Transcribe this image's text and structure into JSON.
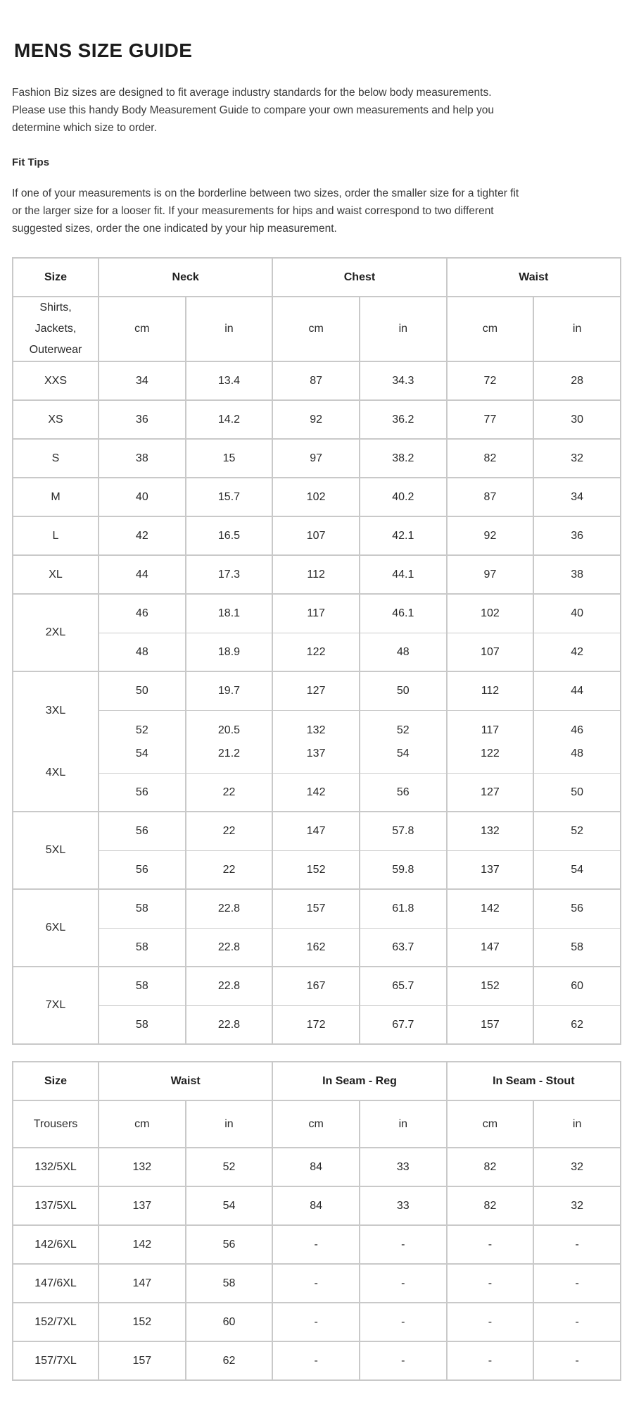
{
  "page": {
    "title": "MENS SIZE GUIDE",
    "intro": "Fashion Biz sizes are designed to fit average industry standards for the below body measurements.\nPlease use this handy Body Measurement Guide to compare your own measurements and help you\ndetermine which size to order.",
    "fit_tips_heading": "Fit Tips",
    "fit_tips_body": "If one of your measurements is on the borderline between two sizes, order the smaller size for a tighter fit\nor the larger size for a looser fit. If your measurements for hips and waist correspond to two different\nsuggested sizes, order the one indicated by your hip measurement."
  },
  "tables": [
    {
      "name": "shirts-jackets-outerwear",
      "columns": [
        "Size",
        "Neck",
        "Chest",
        "Waist"
      ],
      "category_label": "Shirts,\nJackets,\nOuterwear",
      "units": [
        "cm",
        "in",
        "cm",
        "in",
        "cm",
        "in"
      ],
      "groups": [
        {
          "labels": [
            "XXS"
          ],
          "rows": [
            [
              "34",
              "13.4",
              "87",
              "34.3",
              "72",
              "28"
            ]
          ]
        },
        {
          "labels": [
            "XS"
          ],
          "rows": [
            [
              "36",
              "14.2",
              "92",
              "36.2",
              "77",
              "30"
            ]
          ]
        },
        {
          "labels": [
            "S"
          ],
          "rows": [
            [
              "38",
              "15",
              "97",
              "38.2",
              "82",
              "32"
            ]
          ]
        },
        {
          "labels": [
            "M"
          ],
          "rows": [
            [
              "40",
              "15.7",
              "102",
              "40.2",
              "87",
              "34"
            ]
          ]
        },
        {
          "labels": [
            "L"
          ],
          "rows": [
            [
              "42",
              "16.5",
              "107",
              "42.1",
              "92",
              "36"
            ]
          ]
        },
        {
          "labels": [
            "XL"
          ],
          "rows": [
            [
              "44",
              "17.3",
              "112",
              "44.1",
              "97",
              "38"
            ]
          ]
        },
        {
          "labels": [
            "2XL"
          ],
          "rows": [
            [
              "46",
              "18.1",
              "117",
              "46.1",
              "102",
              "40"
            ],
            [
              "48",
              "18.9",
              "122",
              "48",
              "107",
              "42"
            ]
          ]
        },
        {
          "labels": [
            "3XL",
            "4XL"
          ],
          "rows": [
            [
              "50",
              "19.7",
              "127",
              "50",
              "112",
              "44"
            ],
            [
              "52\n54",
              "20.5\n21.2",
              "132\n137",
              "52\n54",
              "117\n122",
              "46\n48"
            ],
            [
              "56",
              "22",
              "142",
              "56",
              "127",
              "50"
            ]
          ]
        },
        {
          "labels": [
            "5XL"
          ],
          "rows": [
            [
              "56",
              "22",
              "147",
              "57.8",
              "132",
              "52"
            ],
            [
              "56",
              "22",
              "152",
              "59.8",
              "137",
              "54"
            ]
          ]
        },
        {
          "labels": [
            "6XL"
          ],
          "rows": [
            [
              "58",
              "22.8",
              "157",
              "61.8",
              "142",
              "56"
            ],
            [
              "58",
              "22.8",
              "162",
              "63.7",
              "147",
              "58"
            ]
          ]
        },
        {
          "labels": [
            "7XL"
          ],
          "rows": [
            [
              "58",
              "22.8",
              "167",
              "65.7",
              "152",
              "60"
            ],
            [
              "58",
              "22.8",
              "172",
              "67.7",
              "157",
              "62"
            ]
          ]
        }
      ]
    },
    {
      "name": "trousers",
      "columns": [
        "Size",
        "Waist",
        "In Seam - Reg",
        "In Seam - Stout"
      ],
      "category_label": "Trousers",
      "units": [
        "cm",
        "in",
        "cm",
        "in",
        "cm",
        "in"
      ],
      "groups": [
        {
          "labels": [
            "132/5XL"
          ],
          "rows": [
            [
              "132",
              "52",
              "84",
              "33",
              "82",
              "32"
            ]
          ]
        },
        {
          "labels": [
            "137/5XL"
          ],
          "rows": [
            [
              "137",
              "54",
              "84",
              "33",
              "82",
              "32"
            ]
          ]
        },
        {
          "labels": [
            "142/6XL"
          ],
          "rows": [
            [
              "142",
              "56",
              "-",
              "-",
              "-",
              "-"
            ]
          ]
        },
        {
          "labels": [
            "147/6XL"
          ],
          "rows": [
            [
              "147",
              "58",
              "-",
              "-",
              "-",
              "-"
            ]
          ]
        },
        {
          "labels": [
            "152/7XL"
          ],
          "rows": [
            [
              "152",
              "60",
              "-",
              "-",
              "-",
              "-"
            ]
          ]
        },
        {
          "labels": [
            "157/7XL"
          ],
          "rows": [
            [
              "157",
              "62",
              "-",
              "-",
              "-",
              "-"
            ]
          ]
        }
      ]
    }
  ]
}
